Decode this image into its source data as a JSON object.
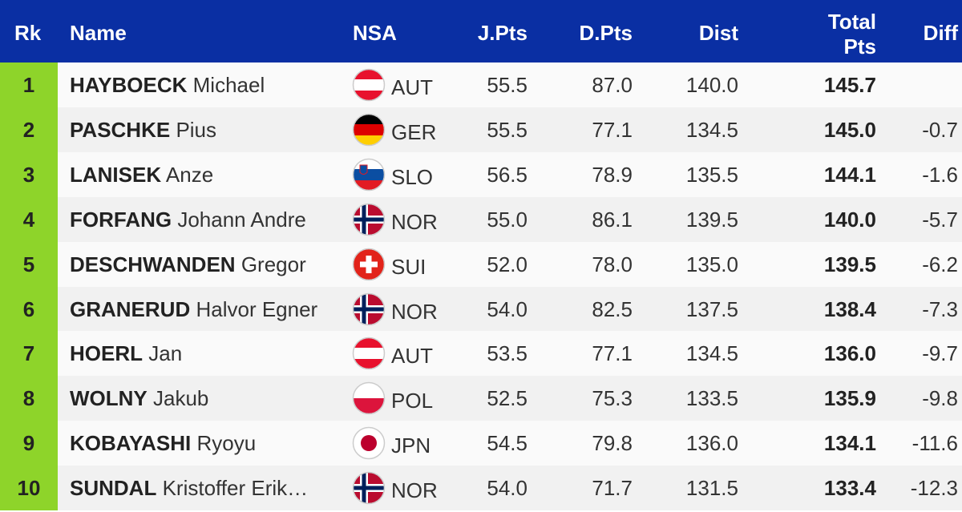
{
  "table": {
    "header": [
      "Rk",
      "Name",
      "NSA",
      "J.Pts",
      "D.Pts",
      "Dist",
      "Total Pts",
      "Diff"
    ],
    "rows": [
      {
        "rank": "1",
        "surname": "HAYBOECK",
        "given": "Michael",
        "nsa": "AUT",
        "jpts": "55.5",
        "dpts": "87.0",
        "dist": "140.0",
        "total": "145.7",
        "diff": null
      },
      {
        "rank": "2",
        "surname": "PASCHKE",
        "given": "Pius",
        "nsa": "GER",
        "jpts": "55.5",
        "dpts": "77.1",
        "dist": "134.5",
        "total": "145.0",
        "diff": "-0.7"
      },
      {
        "rank": "3",
        "surname": "LANISEK",
        "given": "Anze",
        "nsa": "SLO",
        "jpts": "56.5",
        "dpts": "78.9",
        "dist": "135.5",
        "total": "144.1",
        "diff": "-1.6"
      },
      {
        "rank": "4",
        "surname": "FORFANG",
        "given": "Johann Andre",
        "nsa": "NOR",
        "jpts": "55.0",
        "dpts": "86.1",
        "dist": "139.5",
        "total": "140.0",
        "diff": "-5.7"
      },
      {
        "rank": "5",
        "surname": "DESCHWANDEN",
        "given": "Gregor",
        "nsa": "SUI",
        "jpts": "52.0",
        "dpts": "78.0",
        "dist": "135.0",
        "total": "139.5",
        "diff": "-6.2"
      },
      {
        "rank": "6",
        "surname": "GRANERUD",
        "given": "Halvor Egner",
        "nsa": "NOR",
        "jpts": "54.0",
        "dpts": "82.5",
        "dist": "137.5",
        "total": "138.4",
        "diff": "-7.3"
      },
      {
        "rank": "7",
        "surname": "HOERL",
        "given": "Jan",
        "nsa": "AUT",
        "jpts": "53.5",
        "dpts": "77.1",
        "dist": "134.5",
        "total": "136.0",
        "diff": "-9.7"
      },
      {
        "rank": "8",
        "surname": "WOLNY",
        "given": "Jakub",
        "nsa": "POL",
        "jpts": "52.5",
        "dpts": "75.3",
        "dist": "133.5",
        "total": "135.9",
        "diff": "-9.8"
      },
      {
        "rank": "9",
        "surname": "KOBAYASHI",
        "given": "Ryoyu",
        "nsa": "JPN",
        "jpts": "54.5",
        "dpts": "79.8",
        "dist": "136.0",
        "total": "134.1",
        "diff": "-11.6"
      },
      {
        "rank": "10",
        "surname": "SUNDAL",
        "given": "Kristoffer Erik…",
        "nsa": "NOR",
        "jpts": "54.0",
        "dpts": "71.7",
        "dist": "131.5",
        "total": "133.4",
        "diff": "-12.3"
      }
    ]
  }
}
